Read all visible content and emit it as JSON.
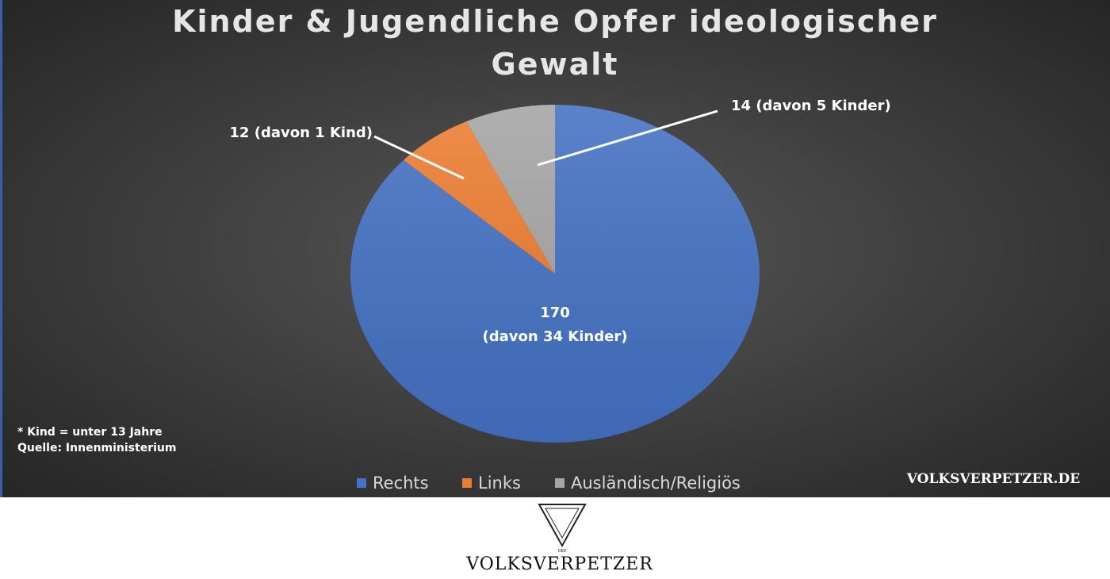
{
  "chart_data": {
    "type": "pie",
    "title": "Kinder & Jugendliche Opfer ideologischer Gewalt",
    "categories": [
      "Rechts",
      "Links",
      "Ausländisch/Religiös"
    ],
    "values": [
      170,
      12,
      14
    ],
    "colors": [
      "#4472c4",
      "#ed7d31",
      "#a5a5a5"
    ],
    "value_labels": [
      "170\n(davon 34 Kinder)",
      "12 (davon 1 Kind)",
      "14 (davon 5 Kinder)"
    ],
    "legend": "bottom",
    "notes": [
      "* Kind = unter 13 Jahre",
      "Quelle: Innenministerium"
    ],
    "watermark": "VOLKSVERPETZER.DE"
  },
  "footer": {
    "logo_mark": "DER",
    "logo_text": "VOLKSVERPETZER"
  }
}
